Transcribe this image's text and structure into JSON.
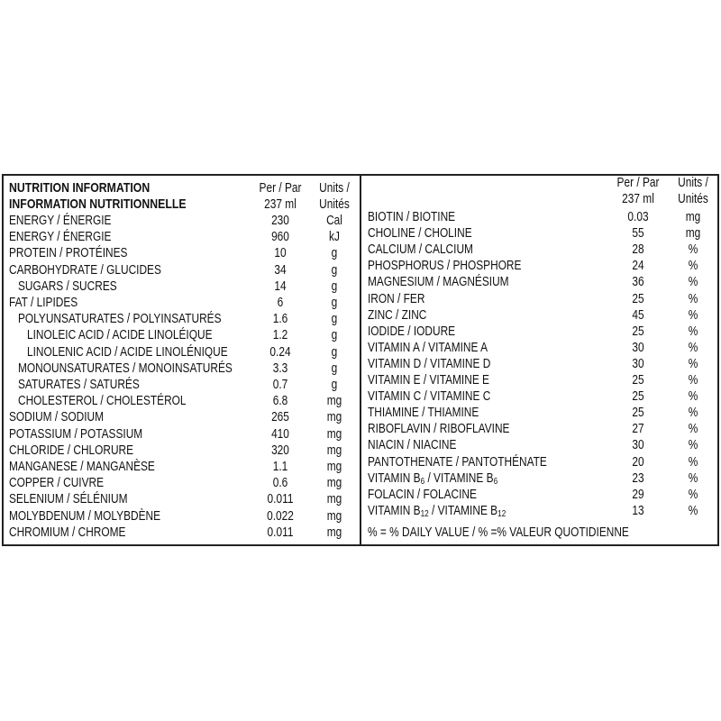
{
  "left": {
    "title_en": "NUTRITION INFORMATION",
    "title_fr": "INFORMATION NUTRITIONNELLE",
    "col_per_1": "Per / Par",
    "col_per_2": "237 ml",
    "col_units_1": "Units /",
    "col_units_2": "Unités",
    "rows": [
      {
        "label": "ENERGY / ÉNERGIE",
        "value": "230",
        "unit": "Cal",
        "indent": 0
      },
      {
        "label": "ENERGY / ÉNERGIE",
        "value": "960",
        "unit": "kJ",
        "indent": 0
      },
      {
        "label": "PROTEIN / PROTÉINES",
        "value": "10",
        "unit": "g",
        "indent": 0
      },
      {
        "label": "CARBOHYDRATE / GLUCIDES",
        "value": "34",
        "unit": "g",
        "indent": 0
      },
      {
        "label": "SUGARS / SUCRES",
        "value": "14",
        "unit": "g",
        "indent": 1
      },
      {
        "label": "FAT / LIPIDES",
        "value": "6",
        "unit": "g",
        "indent": 0
      },
      {
        "label": "POLYUNSATURATES / POLYINSATURÉS",
        "value": "1.6",
        "unit": "g",
        "indent": 1
      },
      {
        "label": "LINOLEIC ACID / ACIDE LINOLÉIQUE",
        "value": "1.2",
        "unit": "g",
        "indent": 2
      },
      {
        "label": "LINOLENIC ACID / ACIDE LINOLÉNIQUE",
        "value": "0.24",
        "unit": "g",
        "indent": 2
      },
      {
        "label": "MONOUNSATURATES / MONOINSATURÉS",
        "value": "3.3",
        "unit": "g",
        "indent": 1
      },
      {
        "label": "SATURATES / SATURÉS",
        "value": "0.7",
        "unit": "g",
        "indent": 1
      },
      {
        "label": "CHOLESTEROL / CHOLESTÉROL",
        "value": "6.8",
        "unit": "mg",
        "indent": 1
      },
      {
        "label": "SODIUM / SODIUM",
        "value": "265",
        "unit": "mg",
        "indent": 0
      },
      {
        "label": "POTASSIUM / POTASSIUM",
        "value": "410",
        "unit": "mg",
        "indent": 0
      },
      {
        "label": "CHLORIDE / CHLORURE",
        "value": "320",
        "unit": "mg",
        "indent": 0
      },
      {
        "label": "MANGANESE / MANGANÈSE",
        "value": "1.1",
        "unit": "mg",
        "indent": 0
      },
      {
        "label": "COPPER / CUIVRE",
        "value": "0.6",
        "unit": "mg",
        "indent": 0
      },
      {
        "label": "SELENIUM / SÉLÉNIUM",
        "value": "0.011",
        "unit": "mg",
        "indent": 0
      },
      {
        "label": "MOLYBDENUM / MOLYBDÈNE",
        "value": "0.022",
        "unit": "mg",
        "indent": 0
      },
      {
        "label": "CHROMIUM / CHROME",
        "value": "0.011",
        "unit": "mg",
        "indent": 0
      }
    ]
  },
  "right": {
    "col_per_1": "Per / Par",
    "col_per_2": "237 ml",
    "col_units_1": "Units /",
    "col_units_2": "Unités",
    "rows": [
      {
        "label": "BIOTIN / BIOTINE",
        "value": "0.03",
        "unit": "mg"
      },
      {
        "label": "CHOLINE / CHOLINE",
        "value": "55",
        "unit": "mg"
      },
      {
        "label": "CALCIUM / CALCIUM",
        "value": "28",
        "unit": "%"
      },
      {
        "label": "PHOSPHORUS / PHOSPHORE",
        "value": "24",
        "unit": "%"
      },
      {
        "label": "MAGNESIUM / MAGNÉSIUM",
        "value": "36",
        "unit": "%"
      },
      {
        "label": "IRON / FER",
        "value": "25",
        "unit": "%"
      },
      {
        "label": "ZINC / ZINC",
        "value": "45",
        "unit": "%"
      },
      {
        "label": "IODIDE / IODURE",
        "value": "25",
        "unit": "%"
      },
      {
        "label": "VITAMIN A / VITAMINE A",
        "value": "30",
        "unit": "%"
      },
      {
        "label": "VITAMIN D / VITAMINE D",
        "value": "30",
        "unit": "%"
      },
      {
        "label": "VITAMIN E / VITAMINE E",
        "value": "25",
        "unit": "%"
      },
      {
        "label": "VITAMIN C / VITAMINE C",
        "value": "25",
        "unit": "%"
      },
      {
        "label": "THIAMINE / THIAMINE",
        "value": "25",
        "unit": "%"
      },
      {
        "label": "RIBOFLAVIN / RIBOFLAVINE",
        "value": "27",
        "unit": "%"
      },
      {
        "label": "NIACIN / NIACINE",
        "value": "30",
        "unit": "%"
      },
      {
        "label": "PANTOTHENATE / PANTOTHÉNATE",
        "value": "20",
        "unit": "%"
      },
      {
        "label_parts": [
          "VITAMIN B",
          "6",
          " / VITAMINE B",
          "6"
        ],
        "value": "23",
        "unit": "%"
      },
      {
        "label": "FOLACIN / FOLACINE",
        "value": "29",
        "unit": "%"
      },
      {
        "label_parts": [
          "VITAMIN B",
          "12",
          " / VITAMINE B",
          "12"
        ],
        "value": "13",
        "unit": "%"
      }
    ],
    "footnote": "% = % DAILY VALUE / % =% VALEUR QUOTIDIENNE"
  }
}
